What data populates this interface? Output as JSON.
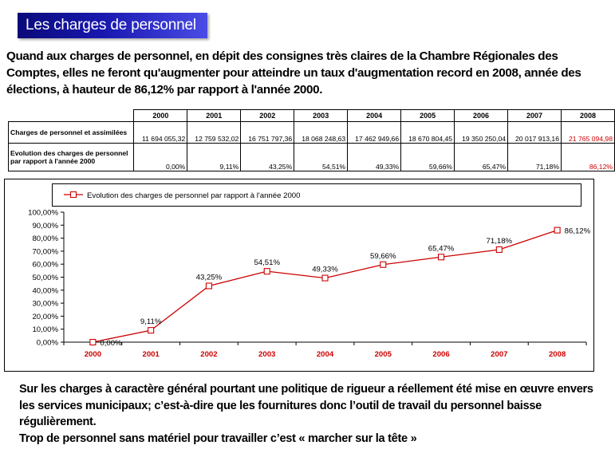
{
  "banner": {
    "title": "Les charges de personnel"
  },
  "intro_text": "Quand aux charges de personnel, en dépit des consignes très claires de la Chambre Régionales des Comptes, elles ne feront qu'augmenter pour atteindre un taux d'augmentation record en 2008, année des élections, à hauteur de 86,12% par rapport à l'année 2000.",
  "table": {
    "years": [
      "2000",
      "2001",
      "2002",
      "2003",
      "2004",
      "2005",
      "2006",
      "2007",
      "2008"
    ],
    "rows": [
      {
        "label": "Charges de personnel et assimilées",
        "values": [
          "11 694 055,32",
          "12 759 532,02",
          "16 751 797,36",
          "18 068 248,63",
          "17 462 949,66",
          "18 670 804,45",
          "19 350 250,04",
          "20 017 913,16",
          "21 765 094,98"
        ]
      },
      {
        "label": "Evolution des charges de personnel par rapport à l'année 2000",
        "values": [
          "0,00%",
          "9,11%",
          "43,25%",
          "54,51%",
          "49,33%",
          "59,66%",
          "65,47%",
          "71,18%",
          "86,12%"
        ]
      }
    ],
    "highlight_color": "#d40000"
  },
  "chart_data": {
    "type": "line",
    "x": [
      "2000",
      "2001",
      "2002",
      "2003",
      "2004",
      "2005",
      "2006",
      "2007",
      "2008"
    ],
    "series": [
      {
        "name": "Evolution des charges de personnel par rapport à l'année 2000",
        "values": [
          0.0,
          9.11,
          43.25,
          54.51,
          49.33,
          59.66,
          65.47,
          71.18,
          86.12
        ],
        "labels": [
          "0,00%",
          "9,11%",
          "43,25%",
          "54,51%",
          "49,33%",
          "59,66%",
          "65,47%",
          "71,18%",
          "86,12%"
        ],
        "color": "#cc0000",
        "marker": "open-square"
      }
    ],
    "yticks": [
      "0,00%",
      "10,00%",
      "20,00%",
      "30,00%",
      "40,00%",
      "50,00%",
      "60,00%",
      "70,00%",
      "80,00%",
      "90,00%",
      "100,00%"
    ],
    "ylim": [
      0,
      100
    ],
    "grid": false,
    "legend": "top",
    "xtick_color": "#cc0000"
  },
  "outro": {
    "paragraph": "Sur les charges à caractère général pourtant une politique de rigueur a réellement été mise en œuvre envers les services municipaux; c’est-à-dire que les fournitures donc l’outil de travail du personnel baisse régulièrement.",
    "closing": "Trop de personnel sans matériel pour travailler c’est « marcher sur la tête »"
  }
}
